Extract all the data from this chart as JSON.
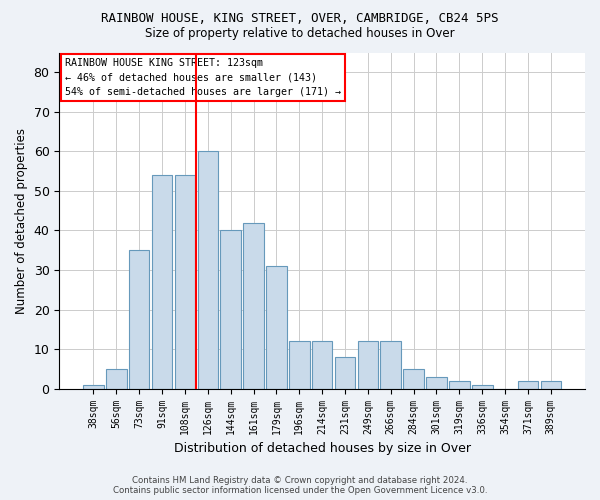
{
  "title": "RAINBOW HOUSE, KING STREET, OVER, CAMBRIDGE, CB24 5PS",
  "subtitle": "Size of property relative to detached houses in Over",
  "xlabel": "Distribution of detached houses by size in Over",
  "ylabel": "Number of detached properties",
  "bin_labels": [
    "38sqm",
    "56sqm",
    "73sqm",
    "91sqm",
    "108sqm",
    "126sqm",
    "144sqm",
    "161sqm",
    "179sqm",
    "196sqm",
    "214sqm",
    "231sqm",
    "249sqm",
    "266sqm",
    "284sqm",
    "301sqm",
    "319sqm",
    "336sqm",
    "354sqm",
    "371sqm",
    "389sqm"
  ],
  "bar_values": [
    1,
    5,
    35,
    54,
    54,
    60,
    40,
    42,
    31,
    12,
    12,
    8,
    12,
    12,
    5,
    3,
    2,
    1,
    0,
    2,
    2
  ],
  "bar_color": "#c9daea",
  "bar_edge_color": "#6699bb",
  "ylim": [
    0,
    85
  ],
  "yticks": [
    0,
    10,
    20,
    30,
    40,
    50,
    60,
    70,
    80
  ],
  "red_line_bin": 5,
  "annotation_title": "RAINBOW HOUSE KING STREET: 123sqm",
  "annotation_line1": "← 46% of detached houses are smaller (143)",
  "annotation_line2": "54% of semi-detached houses are larger (171) →",
  "footer_line1": "Contains HM Land Registry data © Crown copyright and database right 2024.",
  "footer_line2": "Contains public sector information licensed under the Open Government Licence v3.0.",
  "background_color": "#eef2f7",
  "plot_bg_color": "#ffffff",
  "grid_color": "#cccccc"
}
